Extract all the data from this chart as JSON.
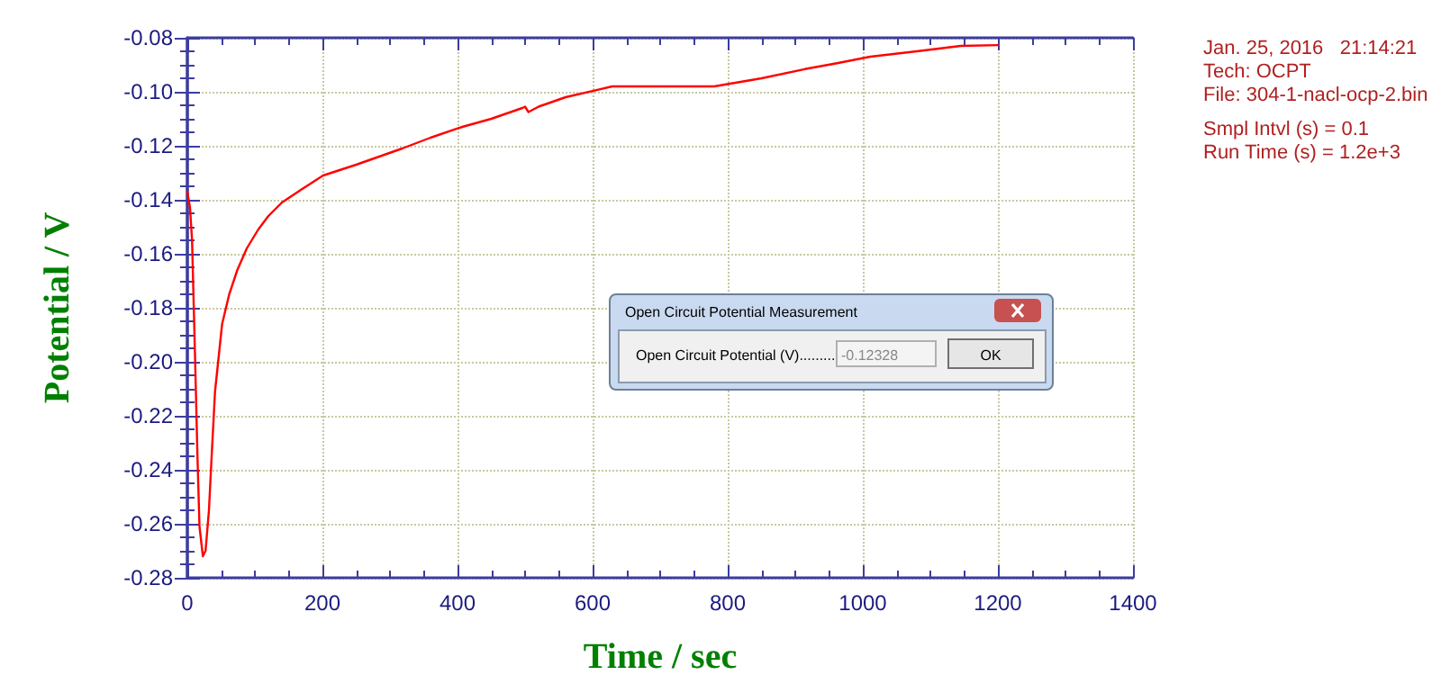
{
  "chart_data": {
    "type": "line",
    "xlabel": "Time / sec",
    "ylabel": "Potential / V",
    "annotations": [
      "Jan. 25, 2016   21:14:21",
      "Tech: OCPT",
      "File: 304-1-nacl-ocp-2.bin",
      "Smpl Intvl (s) = 0.1",
      "Run Time (s) = 1.2e+3",
      "Open Circuit Potential Measurement",
      "Open Circuit Potential (V).........",
      "-0.12328",
      "OK"
    ],
    "x": [
      0,
      4,
      7,
      11.5,
      15,
      18,
      23,
      27,
      32,
      36,
      41,
      51.5,
      62,
      74,
      88,
      105,
      120,
      140,
      170,
      201,
      250,
      318,
      360,
      407,
      450,
      496,
      500,
      505,
      520,
      560,
      607,
      629,
      700,
      780,
      850,
      914,
      960,
      1011,
      1080,
      1145,
      1200
    ],
    "series": [
      {
        "color": "#ff0000",
        "values": [
          -0.137,
          -0.143,
          -0.155,
          -0.199,
          -0.235,
          -0.261,
          -0.272,
          -0.27,
          -0.255,
          -0.235,
          -0.211,
          -0.186,
          -0.175,
          -0.166,
          -0.158,
          -0.151,
          -0.146,
          -0.141,
          -0.136,
          -0.131,
          -0.127,
          -0.121,
          -0.117,
          -0.113,
          -0.11,
          -0.106,
          -0.1055,
          -0.1075,
          -0.1055,
          -0.102,
          -0.0993,
          -0.098,
          -0.098,
          -0.098,
          -0.095,
          -0.0916,
          -0.0895,
          -0.087,
          -0.085,
          -0.083,
          -0.0827
        ]
      }
    ],
    "xlim": [
      0,
      1400
    ],
    "xticks": [
      0,
      200,
      400,
      600,
      800,
      1000,
      1200,
      1400
    ],
    "ylim": [
      -0.28,
      -0.08
    ],
    "yticks": [
      -0.28,
      -0.26,
      -0.24,
      -0.22,
      {
        "value": -0.2,
        "label": "-0.20"
      },
      -0.18,
      -0.16,
      -0.14,
      -0.12,
      {
        "value": -0.1,
        "label": "-0.10"
      },
      -0.08
    ],
    "grid": true,
    "marker": "none",
    "line_style": "solid"
  }
}
